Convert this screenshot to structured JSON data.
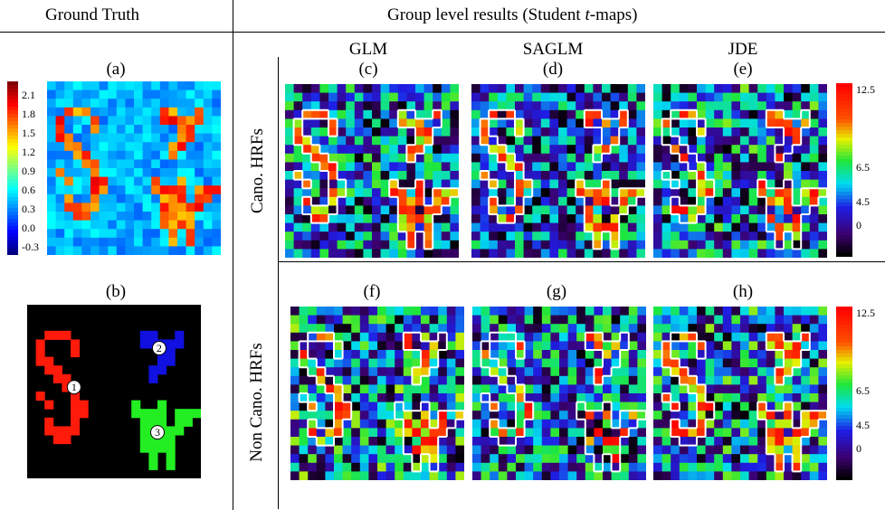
{
  "headers": {
    "left": "Ground Truth",
    "right_prefix": "Group level results (Student ",
    "right_var": "t",
    "right_suffix": "-maps)"
  },
  "methods": {
    "glm": "GLM",
    "saglm": "SAGLM",
    "jde": "JDE"
  },
  "panel_labels": {
    "a": "(a)",
    "b": "(b)",
    "c": "(c)",
    "d": "(d)",
    "e": "(e)",
    "f": "(f)",
    "g": "(g)",
    "h": "(h)"
  },
  "row_labels": {
    "top": "Cano. HRFs",
    "bottom": "Non Cano. HRFs"
  },
  "colorbar_gt_ticks": [
    "2.1",
    "1.8",
    "1.5",
    "1.2",
    "0.9",
    "0.6",
    "0.3",
    "0.0",
    "-0.3"
  ],
  "colorbar_t_ticks": [
    "12.5",
    "6.5",
    "4.5",
    "0"
  ],
  "region_markers": [
    "1",
    "2",
    "3"
  ],
  "colors": {
    "region1": "#ff1a0a",
    "region2": "#1010e0",
    "region3": "#22ee22",
    "background": "#000000"
  }
}
